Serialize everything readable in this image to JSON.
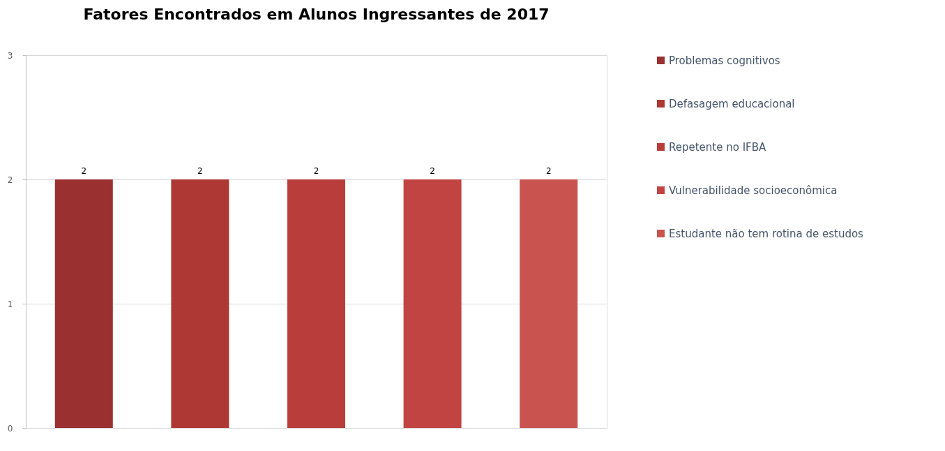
{
  "chart_data": {
    "type": "bar",
    "title": "Fatores Encontrados em Alunos Ingressantes de 2017",
    "categories": [
      null
    ],
    "series": [
      {
        "name": "Problemas cognitivos",
        "color": "#9a3030",
        "values": [
          2
        ]
      },
      {
        "name": "Defasagem educacional",
        "color": "#ad3834",
        "values": [
          2
        ]
      },
      {
        "name": "Repetente no IFBA",
        "color": "#b93d3a",
        "values": [
          2
        ]
      },
      {
        "name": "Vulnerabilidade socioeconômica",
        "color": "#c24442",
        "values": [
          2
        ]
      },
      {
        "name": "Estudante não tem rotina de estudos",
        "color": "#c9534f",
        "values": [
          2
        ]
      }
    ],
    "ylim": [
      0,
      3
    ],
    "yticks": [
      0,
      1,
      2,
      3
    ],
    "grid": "y",
    "legend": "right",
    "data_labels": true
  }
}
